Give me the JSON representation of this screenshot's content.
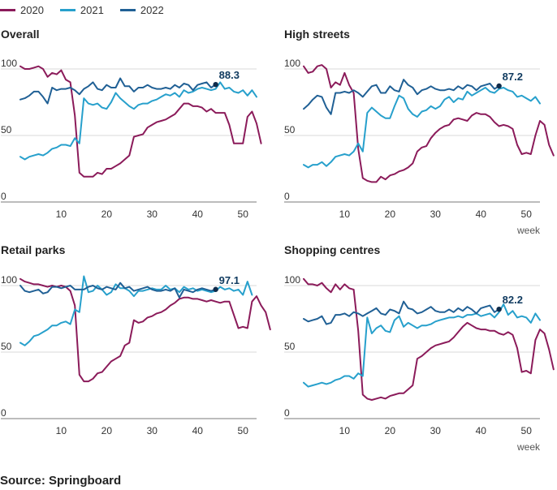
{
  "legend": [
    {
      "label": "2020",
      "color": "#8b1b5a"
    },
    {
      "label": "2021",
      "color": "#27a0cc"
    },
    {
      "label": "2022",
      "color": "#206095"
    }
  ],
  "source": "Source: Springboard",
  "axis_label": "week",
  "chart_data": [
    {
      "type": "line",
      "title": "Overall",
      "xlabel": "week",
      "ylabel": "",
      "xlim": [
        1,
        53
      ],
      "ylim": [
        0,
        105
      ],
      "yticks": [
        0,
        50,
        100
      ],
      "xticks": [
        10,
        20,
        30,
        40,
        50
      ],
      "show_xlabel": false,
      "annotation": {
        "week": 44,
        "value": 88.3,
        "label": "88.3",
        "series": "2022"
      },
      "series": [
        {
          "name": "2020",
          "start_week": 1,
          "values": [
            102,
            100,
            100,
            101,
            102,
            100,
            94,
            97,
            96,
            99,
            92,
            90,
            65,
            22,
            19,
            19,
            19,
            22,
            21,
            25,
            25,
            27,
            29,
            32,
            35,
            49,
            50,
            51,
            56,
            58,
            60,
            61,
            62,
            64,
            66,
            70,
            74,
            74,
            72,
            72,
            71,
            68,
            70,
            67,
            67,
            67,
            58,
            44,
            44,
            44,
            64,
            68,
            59,
            44
          ]
        },
        {
          "name": "2021",
          "start_week": 1,
          "values": [
            34,
            32,
            34,
            35,
            36,
            35,
            37,
            40,
            41,
            43,
            43,
            42,
            48,
            44,
            78,
            74,
            73,
            74,
            71,
            70,
            75,
            82,
            78,
            75,
            72,
            70,
            73,
            74,
            74,
            76,
            77,
            79,
            81,
            80,
            82,
            79,
            84,
            82,
            83,
            85,
            86,
            85,
            84,
            85,
            90,
            85,
            86,
            83,
            82,
            84,
            80,
            84,
            79
          ]
        },
        {
          "name": "2022",
          "start_week": 1,
          "values": [
            77,
            78,
            80,
            83,
            83,
            79,
            74,
            86,
            84,
            85,
            85,
            86,
            84,
            81,
            85,
            87,
            90,
            85,
            84,
            88,
            86,
            86,
            93,
            87,
            87,
            83,
            86,
            86,
            88,
            86,
            85,
            85,
            86,
            85,
            88,
            86,
            89,
            88,
            84,
            88,
            89,
            90,
            86,
            88.3
          ]
        }
      ]
    },
    {
      "type": "line",
      "title": "High streets",
      "xlabel": "week",
      "ylabel": "",
      "xlim": [
        1,
        53
      ],
      "ylim": [
        0,
        105
      ],
      "yticks": [
        0,
        50,
        100
      ],
      "xticks": [
        10,
        20,
        30,
        40,
        50
      ],
      "show_xlabel": true,
      "annotation": {
        "week": 44,
        "value": 87.2,
        "label": "87.2",
        "series": "2022"
      },
      "series": [
        {
          "name": "2020",
          "start_week": 1,
          "values": [
            102,
            97,
            98,
            102,
            103,
            100,
            86,
            90,
            88,
            97,
            88,
            82,
            40,
            18,
            16,
            15,
            15,
            19,
            17,
            20,
            21,
            23,
            24,
            26,
            29,
            38,
            41,
            42,
            48,
            52,
            55,
            57,
            58,
            62,
            63,
            62,
            61,
            65,
            67,
            66,
            66,
            64,
            60,
            57,
            58,
            57,
            55,
            43,
            36,
            37,
            36,
            50,
            61,
            58,
            43,
            35
          ]
        },
        {
          "name": "2021",
          "start_week": 1,
          "values": [
            28,
            26,
            28,
            28,
            30,
            27,
            30,
            34,
            35,
            36,
            35,
            38,
            44,
            38,
            67,
            71,
            68,
            65,
            63,
            63,
            72,
            80,
            78,
            70,
            66,
            64,
            68,
            69,
            72,
            70,
            72,
            77,
            79,
            75,
            78,
            77,
            83,
            80,
            82,
            84,
            86,
            83,
            82,
            85,
            86,
            84,
            83,
            79,
            80,
            78,
            76,
            79,
            74
          ]
        },
        {
          "name": "2022",
          "start_week": 1,
          "values": [
            70,
            73,
            77,
            80,
            79,
            71,
            66,
            82,
            82,
            83,
            82,
            84,
            82,
            79,
            83,
            87,
            88,
            82,
            82,
            87,
            84,
            83,
            92,
            88,
            86,
            81,
            84,
            85,
            87,
            85,
            84,
            84,
            85,
            84,
            87,
            85,
            88,
            87,
            84,
            87,
            88,
            89,
            85,
            87.2
          ]
        }
      ]
    },
    {
      "type": "line",
      "title": "Retail parks",
      "xlabel": "week",
      "ylabel": "",
      "xlim": [
        1,
        53
      ],
      "ylim": [
        0,
        105
      ],
      "yticks": [
        0,
        50,
        100
      ],
      "xticks": [
        10,
        20,
        30,
        40,
        50
      ],
      "show_xlabel": false,
      "annotation": {
        "week": 44,
        "value": 97.1,
        "label": "97.1",
        "series": "2022"
      },
      "series": [
        {
          "name": "2020",
          "start_week": 1,
          "values": [
            105,
            103,
            102,
            101,
            101,
            100,
            99,
            100,
            99,
            100,
            99,
            96,
            85,
            33,
            28,
            28,
            30,
            34,
            35,
            39,
            43,
            45,
            47,
            55,
            57,
            74,
            72,
            73,
            76,
            77,
            79,
            80,
            82,
            85,
            87,
            90,
            91,
            91,
            90,
            90,
            89,
            88,
            89,
            88,
            87,
            88,
            88,
            78,
            68,
            69,
            68,
            88,
            92,
            85,
            80,
            67
          ]
        },
        {
          "name": "2021",
          "start_week": 1,
          "values": [
            57,
            55,
            58,
            62,
            63,
            65,
            67,
            70,
            70,
            72,
            73,
            71,
            82,
            80,
            107,
            95,
            96,
            100,
            97,
            93,
            95,
            101,
            98,
            98,
            96,
            92,
            96,
            96,
            97,
            98,
            97,
            97,
            100,
            97,
            98,
            95,
            99,
            97,
            98,
            96,
            97,
            96,
            95,
            96,
            99,
            97,
            98,
            96,
            97,
            93,
            103,
            93
          ]
        },
        {
          "name": "2022",
          "start_week": 1,
          "values": [
            100,
            96,
            95,
            96,
            97,
            94,
            95,
            99,
            99,
            98,
            99,
            100,
            97,
            97,
            97,
            99,
            100,
            98,
            97,
            99,
            98,
            97,
            102,
            98,
            99,
            96,
            97,
            98,
            99,
            97,
            96,
            96,
            97,
            96,
            98,
            91,
            97,
            96,
            95,
            97,
            98,
            97,
            96,
            97.1
          ]
        }
      ]
    },
    {
      "type": "line",
      "title": "Shopping centres",
      "xlabel": "week",
      "ylabel": "",
      "xlim": [
        1,
        53
      ],
      "ylim": [
        0,
        105
      ],
      "yticks": [
        0,
        50,
        100
      ],
      "xticks": [
        10,
        20,
        30,
        40,
        50
      ],
      "show_xlabel": true,
      "annotation": {
        "week": 44,
        "value": 82.2,
        "label": "82.2",
        "series": "2022"
      },
      "series": [
        {
          "name": "2020",
          "start_week": 1,
          "values": [
            105,
            101,
            101,
            100,
            102,
            98,
            95,
            101,
            97,
            101,
            98,
            97,
            66,
            18,
            15,
            14,
            15,
            16,
            15,
            17,
            18,
            19,
            19,
            22,
            25,
            45,
            47,
            50,
            53,
            55,
            56,
            57,
            58,
            61,
            65,
            69,
            72,
            70,
            68,
            67,
            67,
            66,
            66,
            64,
            63,
            65,
            63,
            53,
            35,
            36,
            34,
            59,
            67,
            64,
            52,
            37
          ]
        },
        {
          "name": "2021",
          "start_week": 1,
          "values": [
            27,
            24,
            25,
            26,
            27,
            26,
            27,
            29,
            30,
            32,
            32,
            30,
            34,
            32,
            76,
            64,
            68,
            70,
            66,
            65,
            74,
            77,
            69,
            72,
            70,
            68,
            70,
            70,
            71,
            73,
            74,
            75,
            76,
            76,
            77,
            76,
            78,
            78,
            79,
            77,
            78,
            79,
            76,
            80,
            86,
            78,
            81,
            76,
            77,
            76,
            72,
            79,
            74
          ]
        },
        {
          "name": "2022",
          "start_week": 1,
          "values": [
            75,
            73,
            74,
            75,
            77,
            71,
            72,
            78,
            78,
            79,
            77,
            80,
            79,
            77,
            79,
            81,
            83,
            79,
            78,
            82,
            81,
            79,
            88,
            83,
            82,
            79,
            80,
            82,
            84,
            81,
            80,
            80,
            82,
            80,
            83,
            81,
            84,
            82,
            79,
            83,
            84,
            85,
            80,
            82.2
          ]
        }
      ]
    }
  ]
}
